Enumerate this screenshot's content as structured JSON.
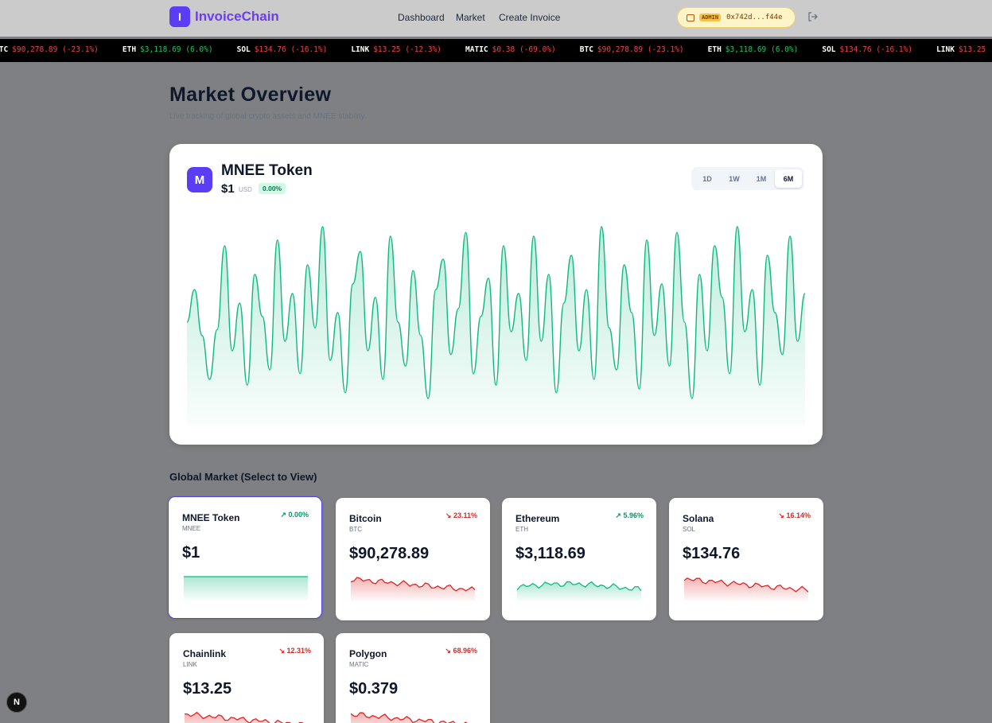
{
  "header": {
    "logo_letter": "I",
    "brand": "InvoiceChain",
    "nav": [
      {
        "label": "Dashboard"
      },
      {
        "label": "Market"
      },
      {
        "label": "Create Invoice"
      }
    ],
    "wallet": {
      "badge": "ADMIN",
      "address": "0x742d...f44e"
    }
  },
  "ticker": [
    {
      "symbol": "BTC",
      "price": "$90,278.89",
      "change": "(-23.1%)",
      "dir": "down"
    },
    {
      "symbol": "ETH",
      "price": "$3,118.69",
      "change": "(6.0%)",
      "dir": "up"
    },
    {
      "symbol": "SOL",
      "price": "$134.76",
      "change": "(-16.1%)",
      "dir": "down"
    },
    {
      "symbol": "LINK",
      "price": "$13.25",
      "change": "(-12.3%)",
      "dir": "down"
    },
    {
      "symbol": "MATIC",
      "price": "$0.38",
      "change": "(-69.0%)",
      "dir": "down"
    }
  ],
  "page": {
    "title": "Market Overview",
    "subtitle": "Live tracking of global crypto assets and MNEE stability."
  },
  "featured": {
    "avatar_letter": "M",
    "name": "MNEE Token",
    "price": "$1",
    "currency": "USD",
    "change": "0.00%",
    "ranges": [
      "1D",
      "1W",
      "1M",
      "6M"
    ],
    "active_range": "6M"
  },
  "market": {
    "title": "Global Market (Select to View)",
    "assets": [
      {
        "name": "MNEE Token",
        "symbol": "MNEE",
        "price": "$1",
        "change": "0.00%",
        "dir": "up",
        "selected": true
      },
      {
        "name": "Bitcoin",
        "symbol": "BTC",
        "price": "$90,278.89",
        "change": "23.11%",
        "dir": "down",
        "selected": false
      },
      {
        "name": "Ethereum",
        "symbol": "ETH",
        "price": "$3,118.69",
        "change": "5.96%",
        "dir": "up",
        "selected": false
      },
      {
        "name": "Solana",
        "symbol": "SOL",
        "price": "$134.76",
        "change": "16.14%",
        "dir": "down",
        "selected": false
      },
      {
        "name": "Chainlink",
        "symbol": "LINK",
        "price": "$13.25",
        "change": "12.31%",
        "dir": "down",
        "selected": false
      },
      {
        "name": "Polygon",
        "symbol": "MATIC",
        "price": "$0.379",
        "change": "68.96%",
        "dir": "down",
        "selected": false
      }
    ]
  },
  "colors": {
    "brand": "#5b3df5",
    "up": "#10b981",
    "down": "#dc2626"
  },
  "chart_data": {
    "type": "area",
    "series": [
      {
        "values": [
          0.45,
          0.62,
          0.38,
          0.15,
          0.41,
          0.85,
          0.3,
          0.55,
          0.12,
          0.7,
          0.48,
          0.2,
          0.88,
          0.35,
          0.6,
          0.18,
          0.75,
          0.42,
          0.95,
          0.25,
          0.5,
          0.08,
          0.65,
          0.82,
          0.3,
          0.58,
          0.15,
          0.9,
          0.45,
          0.22,
          0.72,
          0.38,
          0.05,
          0.62,
          0.78,
          0.28,
          0.52,
          0.92,
          0.18,
          0.48,
          0.68,
          0.12,
          0.85,
          0.4,
          0.6,
          0.25,
          0.9,
          0.35,
          0.7,
          0.08,
          0.55,
          0.8,
          0.3,
          0.62,
          0.15,
          0.95,
          0.42,
          0.2,
          0.75,
          0.5,
          0.1,
          0.88,
          0.38,
          0.65,
          0.22,
          0.92,
          0.45,
          0.05,
          0.7,
          0.3,
          0.85,
          0.58,
          0.18,
          0.95,
          0.4,
          0.62,
          0.12,
          0.8,
          0.5,
          0.28,
          0.9,
          0.35,
          0.6
        ]
      }
    ]
  }
}
